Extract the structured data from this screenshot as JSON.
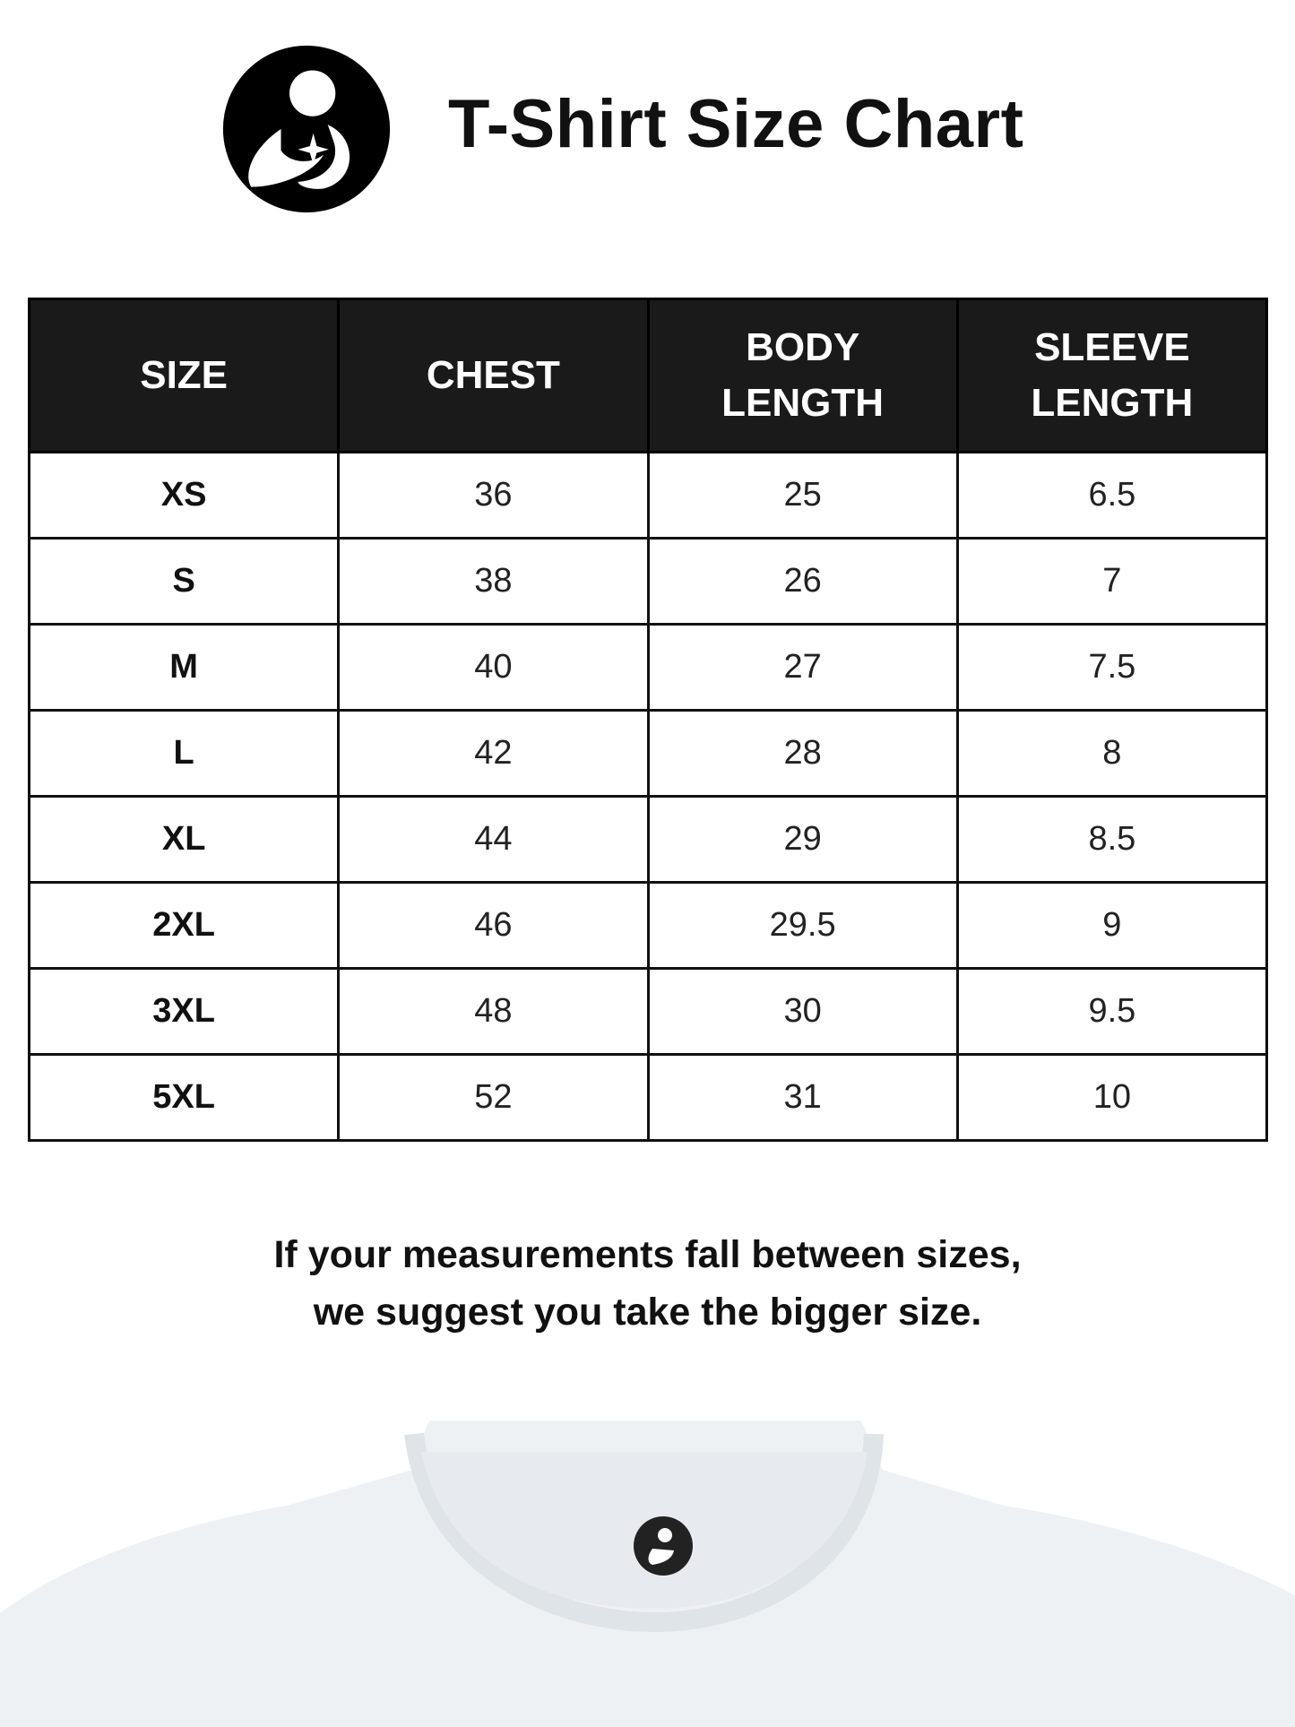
{
  "header": {
    "title": "T-Shirt Size Chart",
    "logo_icon": "mother-child-logo"
  },
  "table": {
    "columns": [
      [
        "SIZE"
      ],
      [
        "CHEST"
      ],
      [
        "BODY",
        "LENGTH"
      ],
      [
        "SLEEVE",
        "LENGTH"
      ]
    ],
    "rows": [
      [
        "XS",
        "36",
        "25",
        "6.5"
      ],
      [
        "S",
        "38",
        "26",
        "7"
      ],
      [
        "M",
        "40",
        "27",
        "7.5"
      ],
      [
        "L",
        "42",
        "28",
        "8"
      ],
      [
        "XL",
        "44",
        "29",
        "8.5"
      ],
      [
        "2XL",
        "46",
        "29.5",
        "9"
      ],
      [
        "3XL",
        "48",
        "30",
        "9.5"
      ],
      [
        "5XL",
        "52",
        "31",
        "10"
      ]
    ]
  },
  "note": {
    "line1": "If your measurements fall between sizes,",
    "line2": "we suggest you take the bigger size."
  },
  "colors": {
    "header_bg": "#1a1a1a",
    "shirt": "#eef1f4"
  }
}
